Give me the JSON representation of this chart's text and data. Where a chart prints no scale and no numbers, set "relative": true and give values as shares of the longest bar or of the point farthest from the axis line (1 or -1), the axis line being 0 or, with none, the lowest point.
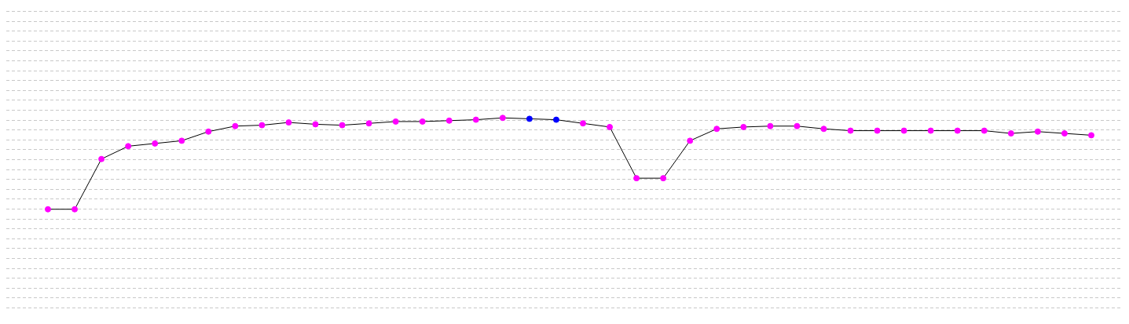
{
  "chart_data": {
    "type": "line",
    "relative": true,
    "grid": "y",
    "legend": false,
    "marker": "circle",
    "line_style": "solid",
    "categories": [
      null,
      null,
      null,
      null,
      null,
      null,
      null,
      null,
      null,
      null,
      null,
      null,
      null,
      null,
      null,
      null,
      null,
      null,
      null,
      null,
      null,
      null,
      null,
      null,
      null,
      null,
      null,
      null,
      null,
      null,
      null,
      null,
      null,
      null,
      null,
      null,
      null,
      null,
      null,
      null
    ],
    "series": [
      {
        "color": "#000000",
        "colors": [
          "#ff00ff",
          "#ff00ff",
          "#ff00ff",
          "#ff00ff",
          "#ff00ff",
          "#ff00ff",
          "#ff00ff",
          "#ff00ff",
          "#ff00ff",
          "#ff00ff",
          "#ff00ff",
          "#ff00ff",
          "#ff00ff",
          "#ff00ff",
          "#ff00ff",
          "#ff00ff",
          "#ff00ff",
          "#ff00ff",
          "#0000ff",
          "#0000ff",
          "#ff00ff",
          "#ff00ff",
          "#ff00ff",
          "#ff00ff",
          "#ff00ff",
          "#ff00ff",
          "#ff00ff",
          "#ff00ff",
          "#ff00ff",
          "#ff00ff",
          "#ff00ff",
          "#ff00ff",
          "#ff00ff",
          "#ff00ff",
          "#ff00ff",
          "#ff00ff",
          "#ff00ff",
          "#ff00ff",
          "#ff00ff",
          "#ff00ff"
        ],
        "values": [
          0,
          0,
          0.55,
          0.69,
          0.72,
          0.75,
          0.85,
          0.91,
          0.92,
          0.95,
          0.93,
          0.92,
          0.94,
          0.96,
          0.96,
          0.97,
          0.98,
          1,
          0.99,
          0.98,
          0.94,
          0.9,
          0.34,
          0.34,
          0.75,
          0.88,
          0.9,
          0.91,
          0.91,
          0.88,
          0.86,
          0.86,
          0.86,
          0.86,
          0.86,
          0.86,
          0.83,
          0.85,
          0.83,
          0.81
        ]
      }
    ]
  }
}
